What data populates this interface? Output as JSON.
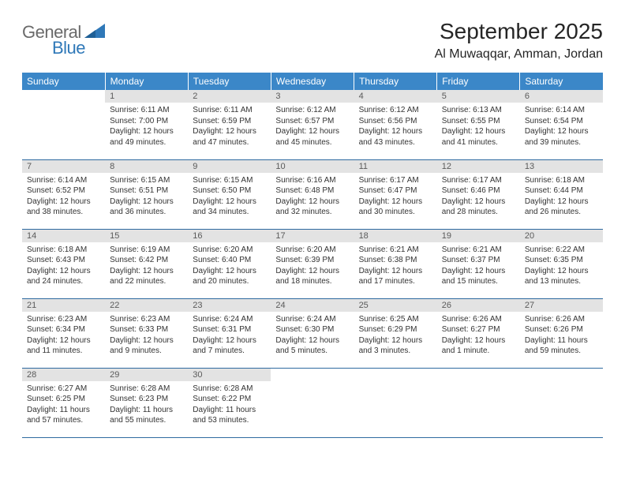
{
  "logo": {
    "text1": "General",
    "text2": "Blue",
    "shape_color": "#2f78b8"
  },
  "title": "September 2025",
  "location": "Al Muwaqqar, Amman, Jordan",
  "header_bg": "#3b87c8",
  "header_fg": "#ffffff",
  "daynum_bg": "#e3e3e3",
  "daynum_fg": "#5a5a5a",
  "rule_color": "#2f6aa0",
  "days_of_week": [
    "Sunday",
    "Monday",
    "Tuesday",
    "Wednesday",
    "Thursday",
    "Friday",
    "Saturday"
  ],
  "weeks": [
    [
      null,
      {
        "n": "1",
        "sunrise": "6:11 AM",
        "sunset": "7:00 PM",
        "dl": "12 hours and 49 minutes."
      },
      {
        "n": "2",
        "sunrise": "6:11 AM",
        "sunset": "6:59 PM",
        "dl": "12 hours and 47 minutes."
      },
      {
        "n": "3",
        "sunrise": "6:12 AM",
        "sunset": "6:57 PM",
        "dl": "12 hours and 45 minutes."
      },
      {
        "n": "4",
        "sunrise": "6:12 AM",
        "sunset": "6:56 PM",
        "dl": "12 hours and 43 minutes."
      },
      {
        "n": "5",
        "sunrise": "6:13 AM",
        "sunset": "6:55 PM",
        "dl": "12 hours and 41 minutes."
      },
      {
        "n": "6",
        "sunrise": "6:14 AM",
        "sunset": "6:54 PM",
        "dl": "12 hours and 39 minutes."
      }
    ],
    [
      {
        "n": "7",
        "sunrise": "6:14 AM",
        "sunset": "6:52 PM",
        "dl": "12 hours and 38 minutes."
      },
      {
        "n": "8",
        "sunrise": "6:15 AM",
        "sunset": "6:51 PM",
        "dl": "12 hours and 36 minutes."
      },
      {
        "n": "9",
        "sunrise": "6:15 AM",
        "sunset": "6:50 PM",
        "dl": "12 hours and 34 minutes."
      },
      {
        "n": "10",
        "sunrise": "6:16 AM",
        "sunset": "6:48 PM",
        "dl": "12 hours and 32 minutes."
      },
      {
        "n": "11",
        "sunrise": "6:17 AM",
        "sunset": "6:47 PM",
        "dl": "12 hours and 30 minutes."
      },
      {
        "n": "12",
        "sunrise": "6:17 AM",
        "sunset": "6:46 PM",
        "dl": "12 hours and 28 minutes."
      },
      {
        "n": "13",
        "sunrise": "6:18 AM",
        "sunset": "6:44 PM",
        "dl": "12 hours and 26 minutes."
      }
    ],
    [
      {
        "n": "14",
        "sunrise": "6:18 AM",
        "sunset": "6:43 PM",
        "dl": "12 hours and 24 minutes."
      },
      {
        "n": "15",
        "sunrise": "6:19 AM",
        "sunset": "6:42 PM",
        "dl": "12 hours and 22 minutes."
      },
      {
        "n": "16",
        "sunrise": "6:20 AM",
        "sunset": "6:40 PM",
        "dl": "12 hours and 20 minutes."
      },
      {
        "n": "17",
        "sunrise": "6:20 AM",
        "sunset": "6:39 PM",
        "dl": "12 hours and 18 minutes."
      },
      {
        "n": "18",
        "sunrise": "6:21 AM",
        "sunset": "6:38 PM",
        "dl": "12 hours and 17 minutes."
      },
      {
        "n": "19",
        "sunrise": "6:21 AM",
        "sunset": "6:37 PM",
        "dl": "12 hours and 15 minutes."
      },
      {
        "n": "20",
        "sunrise": "6:22 AM",
        "sunset": "6:35 PM",
        "dl": "12 hours and 13 minutes."
      }
    ],
    [
      {
        "n": "21",
        "sunrise": "6:23 AM",
        "sunset": "6:34 PM",
        "dl": "12 hours and 11 minutes."
      },
      {
        "n": "22",
        "sunrise": "6:23 AM",
        "sunset": "6:33 PM",
        "dl": "12 hours and 9 minutes."
      },
      {
        "n": "23",
        "sunrise": "6:24 AM",
        "sunset": "6:31 PM",
        "dl": "12 hours and 7 minutes."
      },
      {
        "n": "24",
        "sunrise": "6:24 AM",
        "sunset": "6:30 PM",
        "dl": "12 hours and 5 minutes."
      },
      {
        "n": "25",
        "sunrise": "6:25 AM",
        "sunset": "6:29 PM",
        "dl": "12 hours and 3 minutes."
      },
      {
        "n": "26",
        "sunrise": "6:26 AM",
        "sunset": "6:27 PM",
        "dl": "12 hours and 1 minute."
      },
      {
        "n": "27",
        "sunrise": "6:26 AM",
        "sunset": "6:26 PM",
        "dl": "11 hours and 59 minutes."
      }
    ],
    [
      {
        "n": "28",
        "sunrise": "6:27 AM",
        "sunset": "6:25 PM",
        "dl": "11 hours and 57 minutes."
      },
      {
        "n": "29",
        "sunrise": "6:28 AM",
        "sunset": "6:23 PM",
        "dl": "11 hours and 55 minutes."
      },
      {
        "n": "30",
        "sunrise": "6:28 AM",
        "sunset": "6:22 PM",
        "dl": "11 hours and 53 minutes."
      },
      null,
      null,
      null,
      null
    ]
  ],
  "labels": {
    "sunrise": "Sunrise:",
    "sunset": "Sunset:",
    "daylight": "Daylight:"
  }
}
